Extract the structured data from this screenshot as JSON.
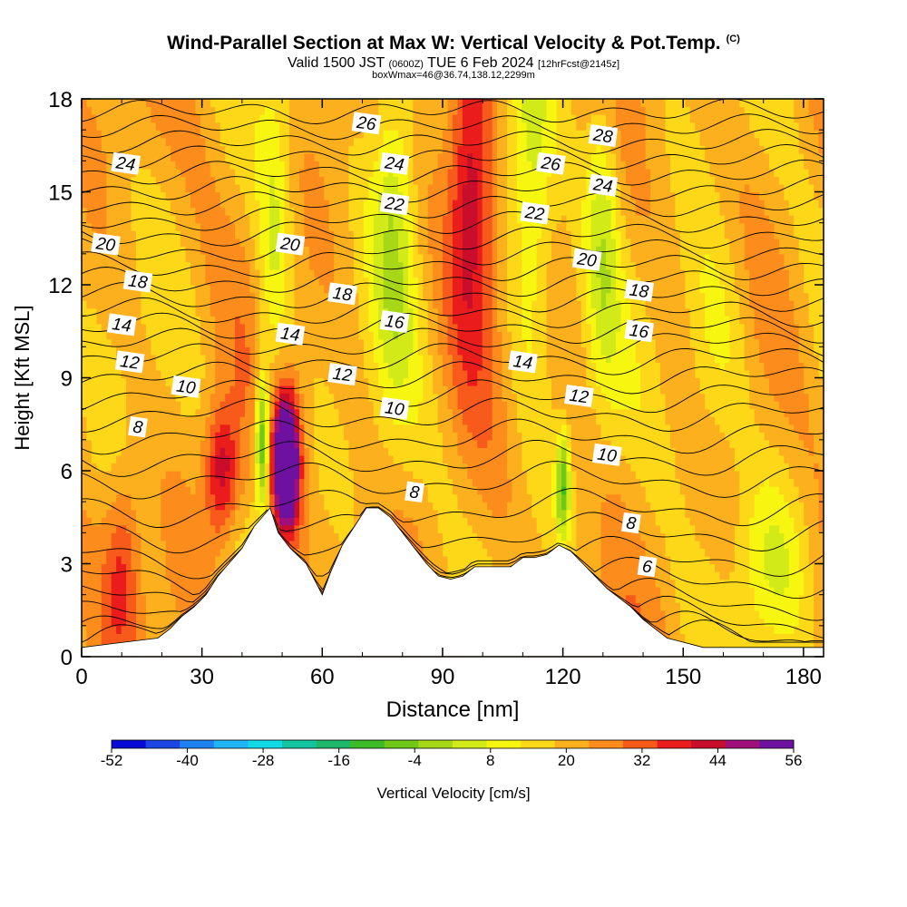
{
  "title": {
    "main": "Wind-Parallel Section at Max W: Vertical Velocity & Pot.Temp.",
    "copyright": "(C)",
    "valid_prefix": "Valid 1500 JST",
    "valid_utc": "(0600Z)",
    "valid_date": "TUE 6 Feb 2024",
    "forecast": "[12hrFcst@2145z]",
    "box": "boxWmax=46@36.74,138.12,2299m"
  },
  "colors": {
    "bands": [
      "#0a0ad7",
      "#1c45e6",
      "#1f80f0",
      "#1fb4f4",
      "#12d9e6",
      "#12c4a0",
      "#1fb86a",
      "#3cbc28",
      "#70c818",
      "#a6d818",
      "#d2ea18",
      "#f6f610",
      "#fcd818",
      "#fcb01e",
      "#fc8c1c",
      "#f85a1c",
      "#ea1c1c",
      "#c80e2a",
      "#a0107a",
      "#6e10a0"
    ],
    "contour": "#000000",
    "terrain": "#ffffff"
  },
  "chart_data": {
    "type": "heatmap",
    "xlabel": "Distance [nm]",
    "ylabel": "Height [Kft MSL]",
    "xlim": [
      0,
      185
    ],
    "ylim": [
      0,
      18
    ],
    "xticks": [
      0,
      30,
      60,
      90,
      120,
      150,
      180
    ],
    "yticks": [
      0,
      3,
      6,
      9,
      12,
      15,
      18
    ],
    "colorbar": {
      "label": "Vertical Velocity [cm/s]",
      "range": [
        -52,
        56
      ],
      "step": 4,
      "tick_labels": [
        "-52",
        "-40",
        "-28",
        "-16",
        "-4",
        "8",
        "20",
        "32",
        "44",
        "56"
      ]
    },
    "w_features": [
      {
        "x": 51,
        "z": 6.3,
        "dx": 2.2,
        "dz": 1.5,
        "w": 46
      },
      {
        "x": 35,
        "z": 6,
        "dx": 3,
        "dz": 1.5,
        "w": 18
      },
      {
        "x": 45,
        "z": 7,
        "dx": 1.2,
        "dz": 1.6,
        "w": -24
      },
      {
        "x": 48,
        "z": 13,
        "dx": 3,
        "dz": 4,
        "w": -10
      },
      {
        "x": 78,
        "z": 15,
        "dx": 4,
        "dz": 5,
        "w": -12
      },
      {
        "x": 97,
        "z": 15.5,
        "dx": 4,
        "dz": 4,
        "w": 18
      },
      {
        "x": 112,
        "z": 15,
        "dx": 4,
        "dz": 5,
        "w": -12
      },
      {
        "x": 120,
        "z": 5.5,
        "dx": 1.2,
        "dz": 1.2,
        "w": -20
      },
      {
        "x": 130,
        "z": 14,
        "dx": 3,
        "dz": 4,
        "w": -10
      },
      {
        "x": 10,
        "z": 3,
        "dx": 3,
        "dz": 2,
        "w": 10
      },
      {
        "x": 158,
        "z": 10,
        "dx": 6,
        "dz": 3,
        "w": -8
      },
      {
        "x": 172,
        "z": 3,
        "dx": 6,
        "dz": 2,
        "w": -8
      }
    ],
    "terrain_profile": {
      "x": [
        0,
        19,
        22,
        25,
        28,
        31,
        34,
        40,
        43,
        47,
        49,
        52,
        56,
        60,
        62,
        65,
        68,
        71,
        74,
        77,
        80,
        83,
        86,
        89,
        92,
        95,
        98,
        101,
        104,
        107,
        110,
        113,
        116,
        119,
        122,
        125,
        128,
        131,
        134,
        137,
        140,
        143,
        146,
        149,
        152,
        155,
        158,
        162,
        170,
        185
      ],
      "top": [
        0.3,
        0.6,
        0.9,
        1.3,
        1.6,
        2.0,
        2.6,
        3.5,
        4.2,
        4.8,
        4.0,
        3.5,
        3.0,
        2.0,
        2.7,
        3.6,
        4.2,
        4.8,
        4.8,
        4.5,
        4.0,
        3.5,
        3.0,
        2.6,
        2.5,
        2.6,
        2.9,
        2.9,
        2.9,
        2.9,
        3.2,
        3.2,
        3.3,
        3.6,
        3.4,
        3.0,
        2.6,
        2.2,
        1.9,
        1.6,
        1.2,
        0.9,
        0.6,
        0.5,
        0.4,
        0.3,
        0.3,
        0.3,
        0.3,
        0.3
      ]
    },
    "theta_contours": {
      "base": [
        0.4,
        0.7,
        1.2,
        1.8,
        2.5,
        3.2,
        4.0,
        4.8,
        5.7,
        6.4,
        7.1,
        7.8,
        8.4,
        9.0,
        9.6,
        10.1,
        10.6,
        11.1,
        11.6,
        12.1,
        12.6,
        13.1,
        13.6,
        14.1,
        14.6,
        15.1,
        15.6,
        16.1,
        16.6,
        17.1,
        17.6
      ],
      "labels": [
        {
          "text": "24",
          "x": 11,
          "z": 15.9
        },
        {
          "text": "20",
          "x": 6,
          "z": 13.3
        },
        {
          "text": "18",
          "x": 14,
          "z": 12.1
        },
        {
          "text": "14",
          "x": 10,
          "z": 10.7
        },
        {
          "text": "12",
          "x": 12,
          "z": 9.5
        },
        {
          "text": "10",
          "x": 26,
          "z": 8.7
        },
        {
          "text": "8",
          "x": 14,
          "z": 7.4
        },
        {
          "text": "26",
          "x": 71,
          "z": 17.2
        },
        {
          "text": "24",
          "x": 78,
          "z": 15.9
        },
        {
          "text": "22",
          "x": 78,
          "z": 14.6
        },
        {
          "text": "20",
          "x": 52,
          "z": 13.3
        },
        {
          "text": "18",
          "x": 65,
          "z": 11.7
        },
        {
          "text": "16",
          "x": 78,
          "z": 10.8
        },
        {
          "text": "14",
          "x": 52,
          "z": 10.4
        },
        {
          "text": "12",
          "x": 65,
          "z": 9.1
        },
        {
          "text": "10",
          "x": 78,
          "z": 8.0
        },
        {
          "text": "8",
          "x": 83,
          "z": 5.3
        },
        {
          "text": "28",
          "x": 130,
          "z": 16.8
        },
        {
          "text": "26",
          "x": 117,
          "z": 15.9
        },
        {
          "text": "24",
          "x": 130,
          "z": 15.2
        },
        {
          "text": "22",
          "x": 113,
          "z": 14.3
        },
        {
          "text": "20",
          "x": 126,
          "z": 12.8
        },
        {
          "text": "18",
          "x": 139,
          "z": 11.8
        },
        {
          "text": "16",
          "x": 139,
          "z": 10.5
        },
        {
          "text": "14",
          "x": 110,
          "z": 9.5
        },
        {
          "text": "12",
          "x": 124,
          "z": 8.4
        },
        {
          "text": "10",
          "x": 131,
          "z": 6.5
        },
        {
          "text": "8",
          "x": 137,
          "z": 4.3
        },
        {
          "text": "6",
          "x": 141,
          "z": 2.9
        }
      ]
    }
  }
}
